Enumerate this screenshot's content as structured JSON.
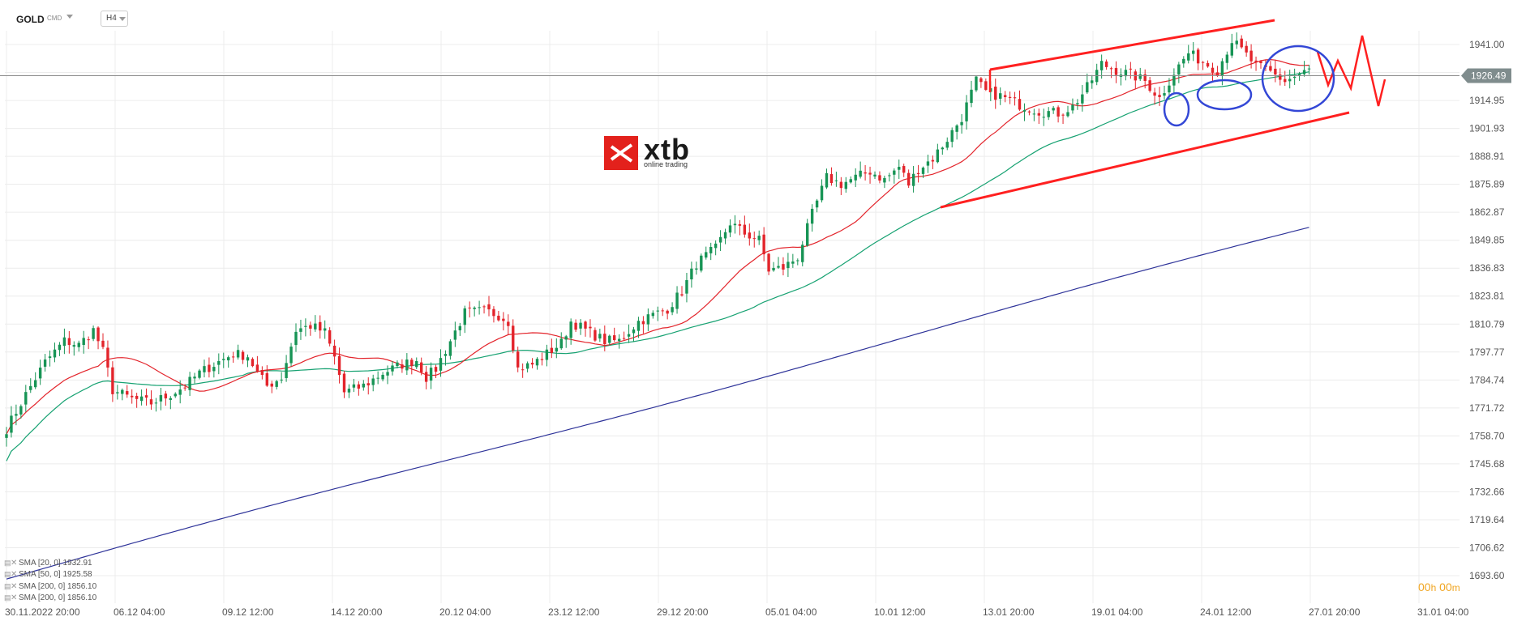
{
  "toolbar": {
    "symbol": "GOLD",
    "symbol_type": "CMD",
    "timeframe": "H4"
  },
  "logo": {
    "name": "xtb",
    "tagline": "online trading"
  },
  "current_price_label": "1926.49",
  "countdown": {
    "hours": "00",
    "h": "h",
    "minutes": "00",
    "m": "m"
  },
  "indicator_legend": [
    {
      "text": "SMA [20, 0] 1932.91"
    },
    {
      "text": "SMA [50, 0] 1925.58"
    },
    {
      "text": "SMA [200, 0] 1856.10"
    },
    {
      "text": "SMA [200, 0] 1856.10"
    }
  ],
  "colors": {
    "bull": "#179455",
    "bear": "#e3242b",
    "sma20": "#e3242b",
    "sma50": "#17a272",
    "sma200": "#2e3399",
    "annot_red": "#ff2020",
    "annot_blue": "#3347d6",
    "grid": "#ececec",
    "price_tag": "#7f8c8d"
  },
  "chart_data": {
    "type": "candlestick",
    "instrument": "GOLD",
    "timeframe": "H4",
    "y_ticks": [
      1941.0,
      1927.97,
      1914.95,
      1901.93,
      1888.91,
      1875.89,
      1862.87,
      1849.85,
      1836.83,
      1823.81,
      1810.79,
      1797.77,
      1784.74,
      1771.72,
      1758.7,
      1745.68,
      1732.66,
      1719.64,
      1706.62,
      1693.6
    ],
    "y_tick_labels": [
      "1941.00",
      "1914.95",
      "1901.93",
      "1888.91",
      "1875.89",
      "1862.87",
      "1849.85",
      "1836.83",
      "1823.81",
      "1810.79",
      "1797.77",
      "1784.74",
      "1771.72",
      "1758.70",
      "1745.68",
      "1732.66",
      "1719.64",
      "1706.62",
      "1693.60"
    ],
    "ylim": [
      1690.4,
      1957.8
    ],
    "x_tick_labels": [
      "30.11.2022  20:00",
      "06.12  04:00",
      "09.12  12:00",
      "14.12  20:00",
      "20.12  04:00",
      "23.12  12:00",
      "29.12  20:00",
      "05.01  04:00",
      "10.01  12:00",
      "13.01  20:00",
      "19.01  04:00",
      "24.01  12:00",
      "27.01  20:00",
      "31.01  04:00"
    ],
    "current_price": 1926.49,
    "close_anchors": [
      [
        0,
        1762
      ],
      [
        4,
        1778
      ],
      [
        8,
        1793
      ],
      [
        12,
        1803
      ],
      [
        15,
        1801
      ],
      [
        18,
        1808
      ],
      [
        20,
        1798
      ],
      [
        22,
        1780
      ],
      [
        26,
        1776
      ],
      [
        30,
        1774
      ],
      [
        34,
        1778
      ],
      [
        37,
        1782
      ],
      [
        40,
        1788
      ],
      [
        43,
        1792
      ],
      [
        47,
        1797
      ],
      [
        50,
        1796
      ],
      [
        52,
        1788
      ],
      [
        54,
        1782
      ],
      [
        57,
        1786
      ],
      [
        60,
        1808
      ],
      [
        63,
        1810
      ],
      [
        66,
        1807
      ],
      [
        68,
        1795
      ],
      [
        70,
        1779
      ],
      [
        74,
        1782
      ],
      [
        78,
        1788
      ],
      [
        82,
        1792
      ],
      [
        85,
        1794
      ],
      [
        87,
        1786
      ],
      [
        89,
        1790
      ],
      [
        92,
        1803
      ],
      [
        95,
        1816
      ],
      [
        99,
        1817
      ],
      [
        102,
        1815
      ],
      [
        104,
        1812
      ],
      [
        106,
        1790
      ],
      [
        109,
        1792
      ],
      [
        112,
        1797
      ],
      [
        115,
        1802
      ],
      [
        117,
        1812
      ],
      [
        120,
        1808
      ],
      [
        124,
        1803
      ],
      [
        127,
        1803
      ],
      [
        131,
        1812
      ],
      [
        134,
        1815
      ],
      [
        137,
        1818
      ],
      [
        140,
        1826
      ],
      [
        143,
        1839
      ],
      [
        147,
        1846
      ],
      [
        150,
        1858
      ],
      [
        153,
        1853
      ],
      [
        156,
        1850
      ],
      [
        158,
        1836
      ],
      [
        161,
        1837
      ],
      [
        164,
        1842
      ],
      [
        167,
        1862
      ],
      [
        170,
        1879
      ],
      [
        173,
        1876
      ],
      [
        176,
        1879
      ],
      [
        179,
        1882
      ],
      [
        182,
        1878
      ],
      [
        185,
        1884
      ],
      [
        187,
        1876
      ],
      [
        189,
        1883
      ],
      [
        192,
        1888
      ],
      [
        195,
        1897
      ],
      [
        198,
        1907
      ],
      [
        201,
        1924
      ],
      [
        203,
        1919
      ],
      [
        206,
        1917
      ],
      [
        210,
        1913
      ],
      [
        214,
        1910
      ],
      [
        218,
        1909
      ],
      [
        221,
        1912
      ],
      [
        224,
        1921
      ],
      [
        227,
        1932
      ],
      [
        230,
        1929
      ],
      [
        233,
        1927
      ],
      [
        236,
        1924
      ],
      [
        239,
        1916
      ],
      [
        242,
        1928
      ],
      [
        245,
        1937
      ],
      [
        248,
        1933
      ],
      [
        251,
        1929
      ],
      [
        254,
        1943
      ],
      [
        257,
        1936
      ],
      [
        259,
        1931
      ],
      [
        262,
        1928
      ],
      [
        265,
        1924
      ],
      [
        268,
        1927
      ],
      [
        270,
        1929
      ]
    ],
    "annotations": {
      "upper_channel": [
        [
          1911,
          1930.3
        ],
        [
          1912,
          1948.4
        ]
      ],
      "lower_channel": [
        [
          1912,
          1877.2
        ],
        [
          1912,
          1909.6
        ]
      ],
      "projected_path": "zigzag after 27.01",
      "highlighted_zones": 4
    },
    "series": [
      {
        "name": "SMA [20, 0]",
        "last": 1932.91
      },
      {
        "name": "SMA [50, 0]",
        "last": 1925.58
      },
      {
        "name": "SMA [200, 0]",
        "last": 1856.1
      }
    ]
  }
}
